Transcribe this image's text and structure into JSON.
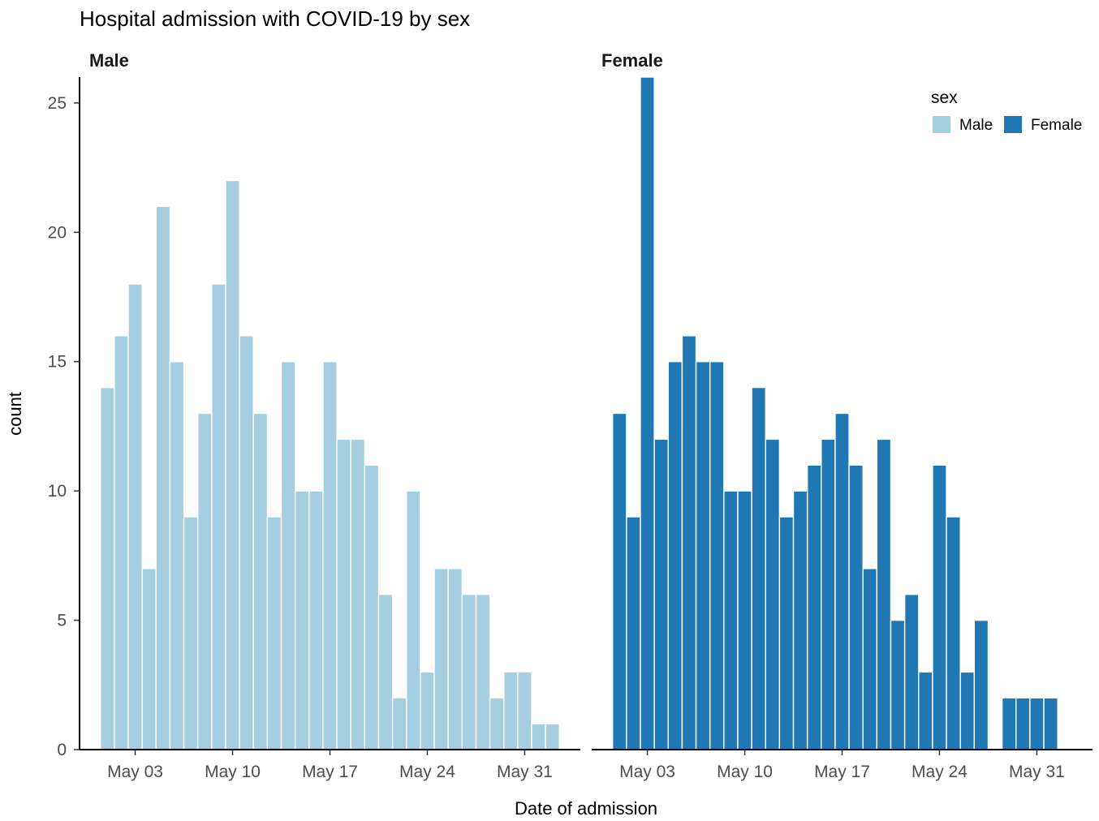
{
  "chart_data": {
    "type": "bar",
    "title": "Hospital admission with COVID-19 by sex",
    "xlabel": "Date of admission",
    "ylabel": "count",
    "ylim": [
      0,
      26
    ],
    "yticks": [
      0,
      5,
      10,
      15,
      20,
      25
    ],
    "grid": false,
    "x_tick_labels": [
      "May 03",
      "May 10",
      "May 17",
      "May 24",
      "May 31"
    ],
    "x_tick_dates": [
      "2020-05-03",
      "2020-05-10",
      "2020-05-17",
      "2020-05-24",
      "2020-05-31"
    ],
    "x_range": [
      "2020-04-29",
      "2020-06-04"
    ],
    "legend": {
      "title": "sex",
      "position": "top-right",
      "entries": [
        {
          "label": "Male",
          "color": "#a6cee3"
        },
        {
          "label": "Female",
          "color": "#1f78b4"
        }
      ]
    },
    "facets": [
      {
        "label": "Male",
        "color": "#a6cee3",
        "series": [
          {
            "date": "2020-05-01",
            "value": 14
          },
          {
            "date": "2020-05-02",
            "value": 16
          },
          {
            "date": "2020-05-03",
            "value": 18
          },
          {
            "date": "2020-05-04",
            "value": 7
          },
          {
            "date": "2020-05-05",
            "value": 21
          },
          {
            "date": "2020-05-06",
            "value": 15
          },
          {
            "date": "2020-05-07",
            "value": 9
          },
          {
            "date": "2020-05-08",
            "value": 13
          },
          {
            "date": "2020-05-09",
            "value": 18
          },
          {
            "date": "2020-05-10",
            "value": 22
          },
          {
            "date": "2020-05-11",
            "value": 16
          },
          {
            "date": "2020-05-12",
            "value": 13
          },
          {
            "date": "2020-05-13",
            "value": 9
          },
          {
            "date": "2020-05-14",
            "value": 15
          },
          {
            "date": "2020-05-15",
            "value": 10
          },
          {
            "date": "2020-05-16",
            "value": 10
          },
          {
            "date": "2020-05-17",
            "value": 15
          },
          {
            "date": "2020-05-18",
            "value": 12
          },
          {
            "date": "2020-05-19",
            "value": 12
          },
          {
            "date": "2020-05-20",
            "value": 11
          },
          {
            "date": "2020-05-21",
            "value": 6
          },
          {
            "date": "2020-05-22",
            "value": 2
          },
          {
            "date": "2020-05-23",
            "value": 10
          },
          {
            "date": "2020-05-24",
            "value": 3
          },
          {
            "date": "2020-05-25",
            "value": 7
          },
          {
            "date": "2020-05-26",
            "value": 7
          },
          {
            "date": "2020-05-27",
            "value": 6
          },
          {
            "date": "2020-05-28",
            "value": 6
          },
          {
            "date": "2020-05-29",
            "value": 2
          },
          {
            "date": "2020-05-30",
            "value": 3
          },
          {
            "date": "2020-05-31",
            "value": 3
          },
          {
            "date": "2020-06-01",
            "value": 1
          },
          {
            "date": "2020-06-02",
            "value": 1
          }
        ]
      },
      {
        "label": "Female",
        "color": "#1f78b4",
        "series": [
          {
            "date": "2020-05-01",
            "value": 13
          },
          {
            "date": "2020-05-02",
            "value": 9
          },
          {
            "date": "2020-05-03",
            "value": 26
          },
          {
            "date": "2020-05-04",
            "value": 12
          },
          {
            "date": "2020-05-05",
            "value": 15
          },
          {
            "date": "2020-05-06",
            "value": 16
          },
          {
            "date": "2020-05-07",
            "value": 15
          },
          {
            "date": "2020-05-08",
            "value": 15
          },
          {
            "date": "2020-05-09",
            "value": 10
          },
          {
            "date": "2020-05-10",
            "value": 10
          },
          {
            "date": "2020-05-11",
            "value": 14
          },
          {
            "date": "2020-05-12",
            "value": 12
          },
          {
            "date": "2020-05-13",
            "value": 9
          },
          {
            "date": "2020-05-14",
            "value": 10
          },
          {
            "date": "2020-05-15",
            "value": 11
          },
          {
            "date": "2020-05-16",
            "value": 12
          },
          {
            "date": "2020-05-17",
            "value": 13
          },
          {
            "date": "2020-05-18",
            "value": 11
          },
          {
            "date": "2020-05-19",
            "value": 7
          },
          {
            "date": "2020-05-20",
            "value": 12
          },
          {
            "date": "2020-05-21",
            "value": 5
          },
          {
            "date": "2020-05-22",
            "value": 6
          },
          {
            "date": "2020-05-23",
            "value": 3
          },
          {
            "date": "2020-05-24",
            "value": 11
          },
          {
            "date": "2020-05-25",
            "value": 9
          },
          {
            "date": "2020-05-26",
            "value": 3
          },
          {
            "date": "2020-05-27",
            "value": 5
          },
          {
            "date": "2020-05-29",
            "value": 2
          },
          {
            "date": "2020-05-30",
            "value": 2
          },
          {
            "date": "2020-05-31",
            "value": 2
          },
          {
            "date": "2020-06-01",
            "value": 2
          }
        ]
      }
    ]
  }
}
